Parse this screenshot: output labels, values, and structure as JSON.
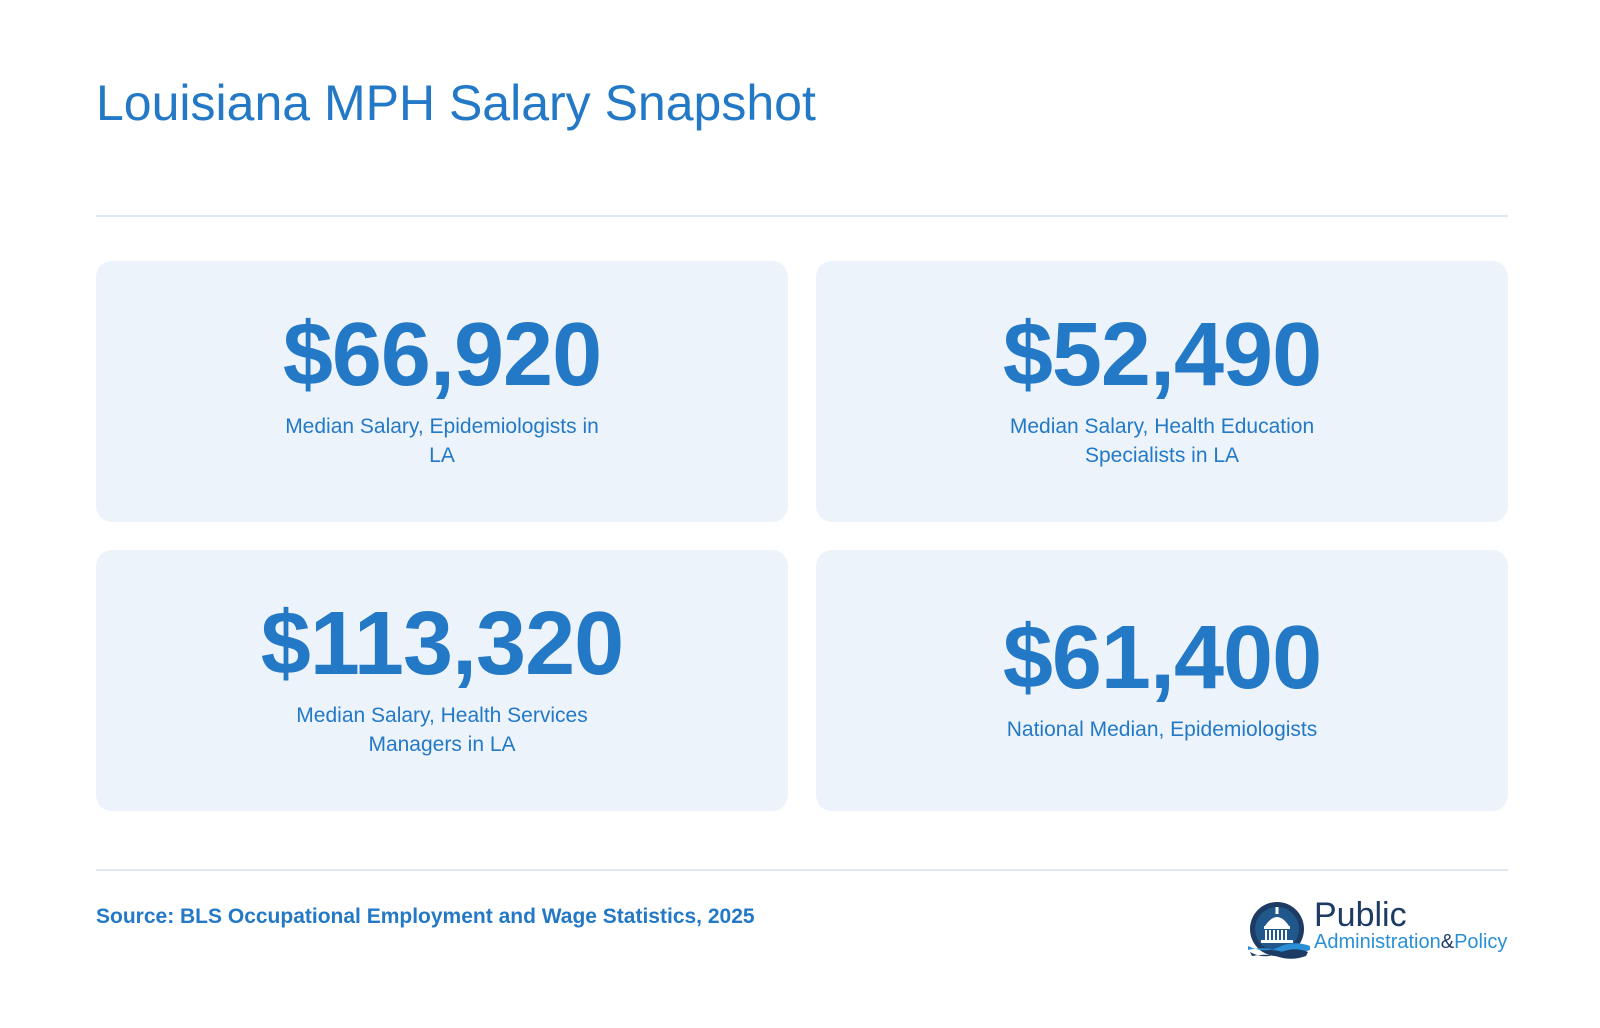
{
  "title": "Louisiana MPH Salary Snapshot",
  "stats": [
    {
      "value": "$66,920",
      "label": "Median Salary, Epidemiologists in LA"
    },
    {
      "value": "$52,490",
      "label": "Median Salary, Health Education Specialists in LA"
    },
    {
      "value": "$113,320",
      "label": "Median Salary, Health Services Managers in LA"
    },
    {
      "value": "$61,400",
      "label": "National Median, Epidemiologists"
    }
  ],
  "source": "Source: BLS Occupational Employment and Wage Statistics, 2025",
  "logo": {
    "line1": "Public",
    "line2": "Administration",
    "amp": "&",
    "line3": "Policy",
    "icon": "capitol-dome-icon"
  },
  "colors": {
    "accent": "#2479c7",
    "card_background": "#ecf3fb",
    "divider": "#dde8f3",
    "logo_navy": "#1d3b63",
    "logo_blue": "#2a8fd6"
  }
}
